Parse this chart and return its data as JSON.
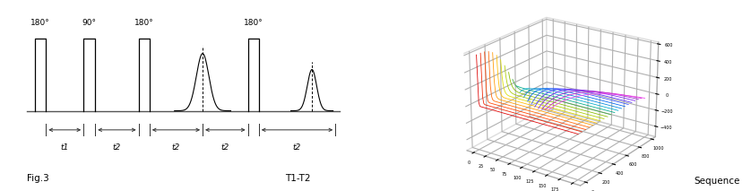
{
  "bg_color": "#ffffff",
  "fig3_label": "Fig.3",
  "t1t2_label": "T1-T2",
  "sequence_label": "Sequence",
  "n_curves": 20,
  "curve_colors": [
    "#dd0000",
    "#ee2200",
    "#ff4400",
    "#ff6600",
    "#ff9900",
    "#ffbb00",
    "#dddd00",
    "#aacc00",
    "#88bb00",
    "#44aa44",
    "#00aa88",
    "#00aacc",
    "#0088dd",
    "#0066ee",
    "#3355ff",
    "#5533ff",
    "#7722ee",
    "#9922cc",
    "#cc22cc",
    "#ee44ee"
  ],
  "3d_elev": 22,
  "3d_azim": -55
}
